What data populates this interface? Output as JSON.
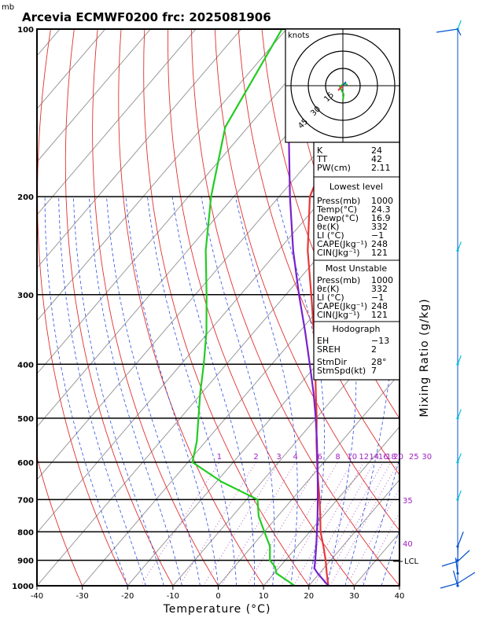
{
  "header": {
    "unit_mb": "mb",
    "title": "Arcevia ECMWF0200  frc: 2025081906"
  },
  "chart_data": {
    "type": "skew-t",
    "xlabel": "Temperature (°C)",
    "right_axis_label": "Mixing Ratio (g/kg)",
    "x_ticks": [
      -40,
      -30,
      -20,
      -10,
      0,
      10,
      20,
      30,
      40
    ],
    "pressure_ticks": [
      100,
      200,
      300,
      400,
      500,
      600,
      700,
      800,
      900,
      1000
    ],
    "xlim": [
      -40,
      40
    ],
    "plim": [
      1000,
      100
    ],
    "mixing_ratio_labels": [
      "1",
      "2",
      "3",
      "4",
      "6",
      "8",
      "10",
      "12",
      "14",
      "16",
      "18",
      "20",
      "25",
      "30"
    ],
    "theta_e_labels": [
      "35",
      "40"
    ],
    "lcl_label": "LCL",
    "series": [
      {
        "name": "Temperature",
        "color": "#e8383a",
        "points": [
          [
            1000,
            24.3
          ],
          [
            950,
            21.6
          ],
          [
            900,
            18.9
          ],
          [
            850,
            15.8
          ],
          [
            800,
            12.4
          ],
          [
            750,
            9.4
          ],
          [
            700,
            6.1
          ],
          [
            650,
            2.4
          ],
          [
            600,
            -1.5
          ],
          [
            550,
            -5.6
          ],
          [
            500,
            -9.9
          ],
          [
            450,
            -14.9
          ],
          [
            400,
            -20.4
          ],
          [
            350,
            -26.8
          ],
          [
            300,
            -34.4
          ],
          [
            250,
            -43.5
          ],
          [
            200,
            -53.2
          ],
          [
            150,
            -60.0
          ],
          [
            100,
            -61.5
          ]
        ]
      },
      {
        "name": "Dewpoint",
        "color": "#22cc22",
        "points": [
          [
            1000,
            16.9
          ],
          [
            950,
            10.5
          ],
          [
            925,
            9.0
          ],
          [
            900,
            6.6
          ],
          [
            850,
            4.0
          ],
          [
            800,
            0.0
          ],
          [
            750,
            -4.2
          ],
          [
            700,
            -7.6
          ],
          [
            650,
            -19.0
          ],
          [
            600,
            -29.0
          ],
          [
            550,
            -32.0
          ],
          [
            500,
            -36.0
          ],
          [
            450,
            -40.4
          ],
          [
            400,
            -45.0
          ],
          [
            350,
            -50.5
          ],
          [
            300,
            -57.5
          ],
          [
            250,
            -66.0
          ],
          [
            200,
            -75.0
          ],
          [
            150,
            -85.0
          ],
          [
            100,
            -91.0
          ]
        ]
      },
      {
        "name": "Parcel",
        "color": "#7722cc",
        "points": [
          [
            1000,
            24.3
          ],
          [
            950,
            19.6
          ],
          [
            930,
            17.9
          ],
          [
            900,
            16.6
          ],
          [
            850,
            14.2
          ],
          [
            800,
            11.6
          ],
          [
            750,
            8.8
          ],
          [
            700,
            5.7
          ],
          [
            650,
            2.3
          ],
          [
            600,
            -1.4
          ],
          [
            550,
            -5.5
          ],
          [
            500,
            -10.1
          ],
          [
            450,
            -15.4
          ],
          [
            400,
            -21.6
          ],
          [
            350,
            -28.7
          ],
          [
            300,
            -37.1
          ],
          [
            250,
            -46.7
          ],
          [
            200,
            -57.6
          ],
          [
            150,
            -71.0
          ],
          [
            120,
            -80.0
          ]
        ]
      }
    ],
    "stats": {
      "top": [
        [
          "K",
          "24"
        ],
        [
          "TT",
          "42"
        ],
        [
          "PW(cm)",
          "2.11"
        ]
      ],
      "lowest_level_title": "Lowest level",
      "lowest_level": [
        [
          "Press(mb)",
          "1000"
        ],
        [
          "Temp(°C)",
          "24.3"
        ],
        [
          "Dewp(°C)",
          "16.9"
        ],
        [
          "θε(K)",
          "332"
        ],
        [
          "LI (°C)",
          "−1"
        ],
        [
          "CAPE(Jkg⁻¹)",
          "248"
        ],
        [
          "CIN(Jkg⁻¹)",
          "121"
        ]
      ],
      "most_unstable_title": "Most Unstable",
      "most_unstable": [
        [
          "Press(mb)",
          "1000"
        ],
        [
          "θε(K)",
          "332"
        ],
        [
          "LI (°C)",
          "−1"
        ],
        [
          "CAPE(Jkg⁻¹)",
          "248"
        ],
        [
          "CIN(Jkg⁻¹)",
          "121"
        ]
      ],
      "hodograph_title": "Hodograph",
      "hodograph": [
        [
          "EH",
          "−13"
        ],
        [
          "SREH",
          "2"
        ],
        [
          "StmDir",
          "28°"
        ],
        [
          "StmSpd(kt)",
          "7"
        ]
      ]
    },
    "hodograph_inset": {
      "units_label": "knots",
      "ring_labels": [
        "15",
        "30",
        "45"
      ]
    },
    "wind_profile": {
      "pressure_levels": [
        100,
        250,
        400,
        500,
        600,
        700,
        850,
        900,
        950,
        1000
      ],
      "colors": {
        "upper": "#00c0e0",
        "lower": "#0050d0"
      }
    }
  }
}
